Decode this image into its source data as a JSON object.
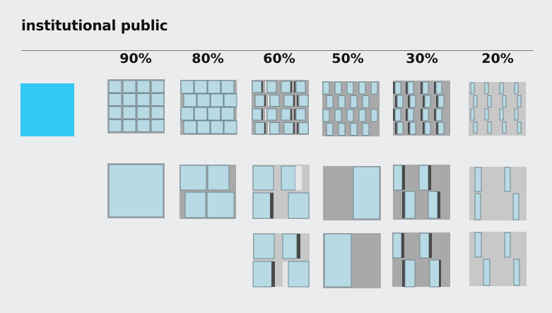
{
  "title": "institutional public",
  "percent_labels": [
    "90%",
    "80%",
    "60%",
    "50%",
    "30%",
    "20%"
  ],
  "colors": {
    "background": "#ebecee",
    "swatch": "#33c8f5",
    "glass": "#b8dae4",
    "panel_dark": "#a9a9a9",
    "panel_light": "#c8c8c8",
    "fin_dark": "#4a4a4a",
    "fin_light": "#e6e6e6",
    "rule": "#777777"
  }
}
